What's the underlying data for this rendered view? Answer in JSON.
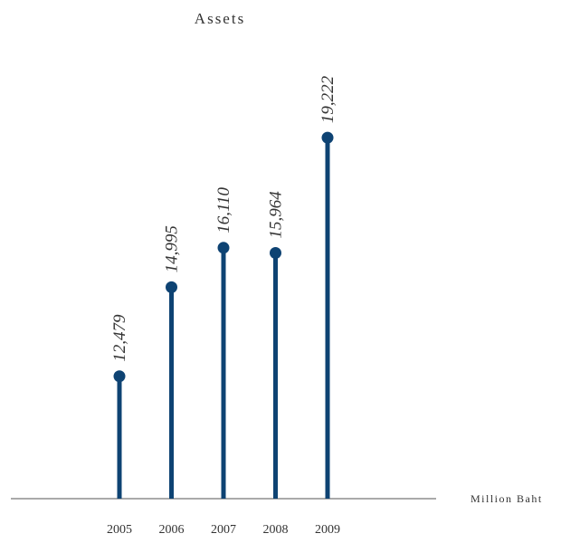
{
  "chart_data": {
    "type": "lollipop",
    "title": "Assets",
    "unit_label": "Million Baht",
    "categories": [
      "2005",
      "2006",
      "2007",
      "2008",
      "2009"
    ],
    "values": [
      12479,
      14995,
      16110,
      15964,
      19222
    ],
    "value_labels": [
      "12,479",
      "14,995",
      "16,110",
      "15,964",
      "19,222"
    ],
    "xlabel": "",
    "ylabel": "",
    "grid": false,
    "legend": "none",
    "colors": {
      "stem": "#0e4373",
      "text": "#333333",
      "axis": "#555555"
    }
  }
}
